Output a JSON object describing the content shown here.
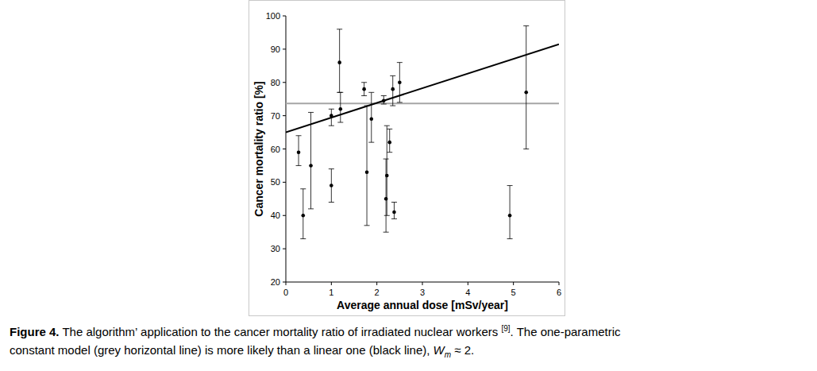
{
  "chart_data": {
    "type": "scatter",
    "x_label": "Average annual dose [mSv/year]",
    "y_label": "Cancer mortality ratio [%]",
    "xlim": [
      0,
      6
    ],
    "ylim": [
      20,
      100
    ],
    "xticks": [
      0,
      1,
      2,
      3,
      4,
      5,
      6
    ],
    "yticks": [
      20,
      30,
      40,
      50,
      60,
      70,
      80,
      90,
      100
    ],
    "grid": false,
    "series": [
      {
        "type": "scatter",
        "color": "#000000",
        "marker": "circle",
        "x": [
          0.28,
          0.38,
          0.55,
          1.0,
          1.0,
          1.18,
          1.2,
          1.72,
          1.78,
          1.88,
          2.15,
          2.2,
          2.22,
          2.28,
          2.35,
          2.38,
          2.5,
          4.92,
          5.28
        ],
        "values": [
          59,
          40,
          55,
          70,
          49,
          86,
          72,
          78,
          53,
          69,
          74.5,
          45,
          52,
          62,
          78,
          41,
          80,
          40,
          77
        ],
        "error_low": [
          4,
          7,
          13,
          3,
          5,
          9,
          4,
          2,
          16,
          7,
          1,
          10,
          12,
          3,
          5,
          2,
          6,
          7,
          17
        ],
        "error_high": [
          5,
          8,
          16,
          2,
          5,
          10,
          5,
          2,
          20,
          8,
          1.5,
          12,
          15,
          4,
          4,
          3,
          6,
          9,
          20
        ]
      },
      {
        "type": "line",
        "color": "#a6a6a6",
        "line_style": "solid",
        "x": [
          0,
          6
        ],
        "values": [
          73.7,
          73.7
        ]
      },
      {
        "type": "line",
        "color": "#000000",
        "line_style": "solid",
        "x": [
          0,
          6
        ],
        "values": [
          65,
          91.5
        ]
      }
    ],
    "caption": {
      "label": "Figure 4.",
      "line1": " The algorithm’ application to the cancer mortality ratio of irradiated nuclear workers ",
      "ref": "[9]",
      "line1_end": ". The one-parametric",
      "line2": "constant model (grey horizontal line) is more likely than a linear one (black line), ",
      "symbol": "W",
      "subscript": "m",
      "line2_end": " ≈ 2."
    }
  }
}
